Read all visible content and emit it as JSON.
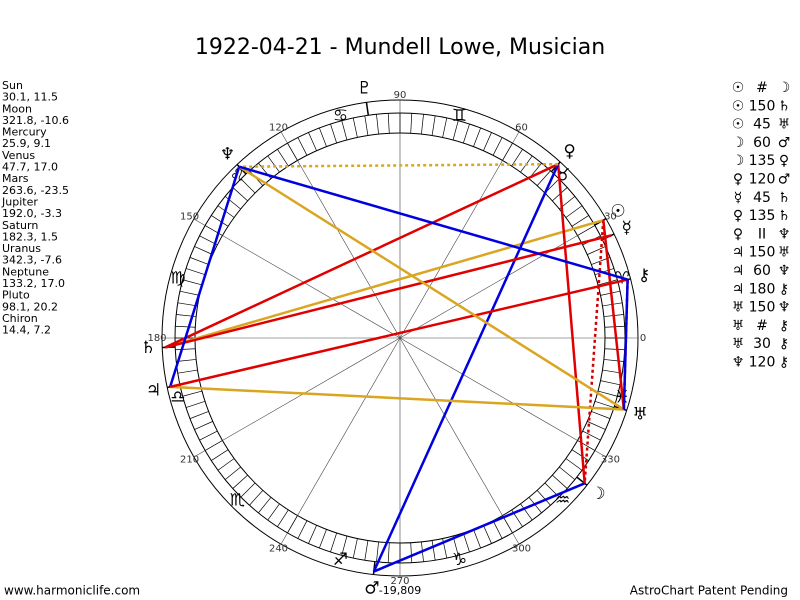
{
  "header": {
    "title": "1922-04-21 - Mundell Lowe, Musician"
  },
  "planets": [
    {
      "name": "Sun",
      "position": "30.1, 11.5",
      "glyph": "☉"
    },
    {
      "name": "Moon",
      "position": "321.8, -10.6",
      "glyph": "☽"
    },
    {
      "name": "Mercury",
      "position": "25.9, 9.1",
      "glyph": "☿"
    },
    {
      "name": "Venus",
      "position": "47.7, 17.0",
      "glyph": "♀"
    },
    {
      "name": "Mars",
      "position": "263.6, -23.5",
      "glyph": "♂"
    },
    {
      "name": "Jupiter",
      "position": "192.0, -3.3",
      "glyph": "♃"
    },
    {
      "name": "Saturn",
      "position": "182.3, 1.5",
      "glyph": "♄"
    },
    {
      "name": "Uranus",
      "position": "342.3, -7.6",
      "glyph": "♅"
    },
    {
      "name": "Neptune",
      "position": "133.2, 17.0",
      "glyph": "♆"
    },
    {
      "name": "Pluto",
      "position": "98.1, 20.2",
      "glyph": "♇"
    },
    {
      "name": "Chiron",
      "position": "14.4, 7.2",
      "glyph": "⚷"
    }
  ],
  "aspects": [
    {
      "a": "☉",
      "aspect": "#",
      "b": "☽",
      "color": "#d00000",
      "dashed": true
    },
    {
      "a": "☉",
      "aspect": "150",
      "b": "♄",
      "color": "#daa520",
      "dashed": false
    },
    {
      "a": "☉",
      "aspect": "45",
      "b": "♅",
      "color": "#e00000",
      "dashed": false
    },
    {
      "a": "☽",
      "aspect": "60",
      "b": "♂",
      "color": "#0000e0",
      "dashed": false
    },
    {
      "a": "☽",
      "aspect": "135",
      "b": "♀",
      "color": "#e00000",
      "dashed": false
    },
    {
      "a": "♀",
      "aspect": "120",
      "b": "♂",
      "color": "#0000e0",
      "dashed": false
    },
    {
      "a": "☿",
      "aspect": "45",
      "b": "♄",
      "color": "#e00000",
      "dashed": false
    },
    {
      "a": "♀",
      "aspect": "135",
      "b": "♄",
      "color": "#e00000",
      "dashed": false
    },
    {
      "a": "♀",
      "aspect": "II",
      "b": "♆",
      "color": "#daa520",
      "dashed": true
    },
    {
      "a": "♃",
      "aspect": "150",
      "b": "♅",
      "color": "#daa520",
      "dashed": false
    },
    {
      "a": "♃",
      "aspect": "60",
      "b": "♆",
      "color": "#0000e0",
      "dashed": false
    },
    {
      "a": "♃",
      "aspect": "180",
      "b": "⚷",
      "color": "#e00000",
      "dashed": false
    },
    {
      "a": "♅",
      "aspect": "150",
      "b": "♆",
      "color": "#daa520",
      "dashed": false
    },
    {
      "a": "♅",
      "aspect": "#",
      "b": "⚷",
      "color": "#d00000",
      "dashed": true
    },
    {
      "a": "♅",
      "aspect": "30",
      "b": "⚷",
      "color": "#0000e0",
      "dashed": false
    },
    {
      "a": "♆",
      "aspect": "120",
      "b": "⚷",
      "color": "#0000e0",
      "dashed": false
    }
  ],
  "degree_labels": [
    0,
    30,
    60,
    90,
    120,
    150,
    180,
    210,
    240,
    270,
    300,
    330
  ],
  "zodiac": [
    "♈",
    "♉",
    "♊",
    "♋",
    "♌",
    "♍",
    "♎",
    "♏",
    "♐",
    "♑",
    "♒",
    "♓"
  ],
  "footer": {
    "site": "www.harmoniclife.com",
    "score": "-19,809",
    "notice": "AstroChart Patent Pending"
  }
}
